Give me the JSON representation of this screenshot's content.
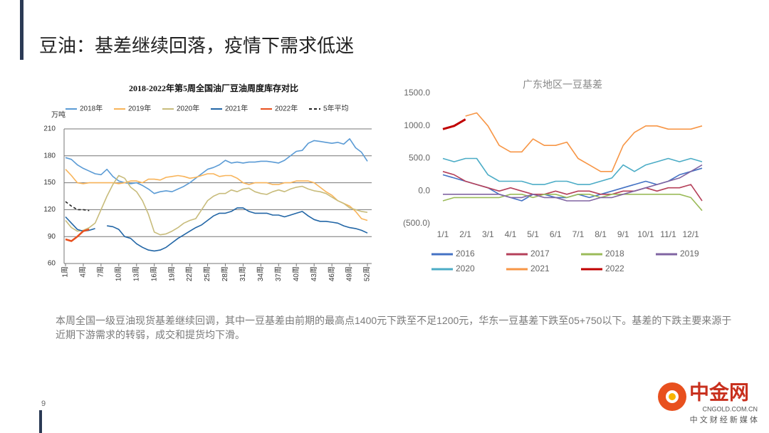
{
  "slide": {
    "title": "豆油：基差继续回落，疫情下需求低迷",
    "paragraph": "本周全国一级豆油现货基差继续回调，其中一豆基差由前期的最高点1400元下跌至不足1200元，华东一豆基差下跌至05+750以下。基差的下跌主要来源于近期下游需求的转弱，成交和提货均下滑。",
    "page_number": "9",
    "logo": {
      "name": "中金网",
      "domain": "CNGOLD.COM.CN",
      "tagline": "中 文 财 经 新 媒 体"
    }
  },
  "chart_data": [
    {
      "type": "line",
      "title": "2018-2022年第5周全国油厂豆油周度库存对比",
      "y_unit": "万吨",
      "legend": "top",
      "grid": true,
      "categories": [
        "1周",
        null,
        null,
        "4周",
        null,
        null,
        "7周",
        null,
        null,
        "10周",
        null,
        null,
        "13周",
        null,
        null,
        "16周",
        null,
        null,
        "19周",
        null,
        null,
        "22周",
        null,
        null,
        "25周",
        null,
        null,
        "28周",
        null,
        null,
        "31周",
        null,
        null,
        "34周",
        null,
        null,
        "37周",
        null,
        null,
        "40周",
        null,
        null,
        "43周",
        null,
        null,
        "46周",
        null,
        null,
        "49周",
        null,
        null,
        "52周"
      ],
      "ylim": [
        60,
        210
      ],
      "yticks": [
        60,
        90,
        120,
        150,
        180,
        210
      ],
      "series": [
        {
          "name": "2018年",
          "color": "#5b9bd5",
          "values": [
            178,
            176,
            170,
            166,
            163,
            160,
            159,
            165,
            157,
            152,
            150,
            149,
            150,
            147,
            143,
            138,
            140,
            141,
            140,
            143,
            146,
            150,
            155,
            160,
            165,
            167,
            170,
            175,
            172,
            173,
            172,
            173,
            173,
            174,
            174,
            173,
            172,
            175,
            180,
            185,
            186,
            194,
            197,
            196,
            195,
            194,
            195,
            193,
            199,
            189,
            184,
            174
          ]
        },
        {
          "name": "2019年",
          "color": "#f8b45a",
          "values": [
            165,
            158,
            150,
            149,
            150,
            150,
            150,
            150,
            150,
            149,
            150,
            152,
            152,
            150,
            154,
            154,
            153,
            156,
            157,
            158,
            157,
            155,
            156,
            158,
            160,
            160,
            157,
            158,
            158,
            155,
            150,
            148,
            150,
            150,
            150,
            148,
            148,
            150,
            150,
            152,
            152,
            152,
            150,
            145,
            140,
            136,
            130,
            127,
            124,
            118,
            110,
            108
          ]
        },
        {
          "name": "2020年",
          "color": "#c8bc7c",
          "values": [
            108,
            100,
            96,
            97,
            100,
            105,
            120,
            135,
            148,
            158,
            155,
            145,
            140,
            130,
            115,
            95,
            92,
            93,
            96,
            100,
            105,
            108,
            110,
            120,
            130,
            135,
            138,
            138,
            142,
            140,
            143,
            144,
            140,
            138,
            137,
            140,
            142,
            140,
            143,
            145,
            146,
            143,
            141,
            140,
            138,
            134,
            130,
            127,
            122,
            120,
            118,
            117
          ]
        },
        {
          "name": "2021年",
          "color": "#2266a6",
          "values": [
            112,
            105,
            98,
            96,
            97,
            99,
            null,
            102,
            101,
            98,
            90,
            88,
            82,
            78,
            75,
            74,
            75,
            78,
            83,
            88,
            92,
            96,
            100,
            103,
            108,
            113,
            116,
            116,
            118,
            122,
            122,
            118,
            116,
            116,
            116,
            114,
            114,
            112,
            114,
            116,
            118,
            113,
            109,
            107,
            107,
            106,
            105,
            102,
            100,
            99,
            97,
            94
          ]
        },
        {
          "name": "2022年",
          "color": "#e8501e",
          "width": 2.5,
          "values": [
            87,
            85,
            90,
            96,
            98,
            null,
            null,
            null,
            null,
            null,
            null,
            null,
            null,
            null,
            null,
            null,
            null,
            null,
            null,
            null,
            null,
            null,
            null,
            null,
            null,
            null,
            null,
            null,
            null,
            null,
            null,
            null,
            null,
            null,
            null,
            null,
            null,
            null,
            null,
            null,
            null,
            null,
            null,
            null,
            null,
            null,
            null,
            null,
            null,
            null,
            null,
            null
          ]
        },
        {
          "name": "5年平均",
          "color": "#222222",
          "dash": true,
          "values": [
            129,
            124,
            120,
            120,
            119,
            null,
            null,
            null,
            null,
            null,
            null,
            null,
            null,
            null,
            null,
            null,
            null,
            null,
            null,
            null,
            null,
            null,
            null,
            null,
            null,
            null,
            null,
            null,
            null,
            null,
            null,
            null,
            null,
            null,
            null,
            null,
            null,
            null,
            null,
            null,
            null,
            null,
            null,
            null,
            null,
            null,
            null,
            null,
            null,
            null,
            null,
            null
          ]
        }
      ]
    },
    {
      "type": "line",
      "title": "广东地区一豆基差",
      "legend": "bottom",
      "grid": false,
      "categories": [
        "1/1",
        null,
        "2/1",
        null,
        "3/1",
        null,
        "4/1",
        null,
        "5/1",
        null,
        "6/1",
        null,
        "7/1",
        null,
        "8/1",
        null,
        "9/1",
        null,
        "10/1",
        null,
        "11/1",
        null,
        "12/1",
        null
      ],
      "ylim": [
        -500,
        1500
      ],
      "yticks": [
        {
          "value": -500,
          "label": "(500.0)"
        },
        {
          "value": 0,
          "label": "0.0"
        },
        {
          "value": 500,
          "label": "500.0"
        },
        {
          "value": 1000,
          "label": "1000.0"
        },
        {
          "value": 1500,
          "label": "1500.0"
        }
      ],
      "series": [
        {
          "name": "2016",
          "color": "#4472c4",
          "values": [
            250,
            200,
            150,
            100,
            50,
            -50,
            -100,
            -150,
            -50,
            -50,
            -100,
            -100,
            -50,
            -100,
            -50,
            0,
            50,
            100,
            150,
            100,
            150,
            250,
            300,
            350
          ]
        },
        {
          "name": "2017",
          "color": "#b5405a",
          "values": [
            300,
            250,
            150,
            100,
            50,
            0,
            50,
            0,
            -50,
            -50,
            0,
            -50,
            0,
            0,
            -50,
            -50,
            0,
            0,
            50,
            0,
            50,
            50,
            100,
            -150
          ]
        },
        {
          "name": "2018",
          "color": "#9bbb59",
          "values": [
            -150,
            -100,
            -100,
            -100,
            -100,
            -100,
            -50,
            -50,
            -100,
            -50,
            -50,
            -100,
            -50,
            -50,
            -100,
            -50,
            -50,
            -50,
            -50,
            -50,
            -50,
            -50,
            -100,
            -300
          ]
        },
        {
          "name": "2019",
          "color": "#8064a2",
          "values": [
            -50,
            -50,
            -50,
            -50,
            -50,
            -50,
            -100,
            -100,
            -50,
            -100,
            -100,
            -150,
            -150,
            -150,
            -100,
            -100,
            -50,
            0,
            50,
            100,
            150,
            200,
            300,
            400
          ]
        },
        {
          "name": "2020",
          "color": "#4bacc6",
          "values": [
            500,
            450,
            500,
            500,
            250,
            150,
            150,
            150,
            100,
            100,
            150,
            150,
            100,
            100,
            150,
            200,
            400,
            300,
            400,
            450,
            500,
            450,
            500,
            450
          ]
        },
        {
          "name": "2021",
          "color": "#f79646",
          "values": [
            null,
            null,
            1150,
            1200,
            1000,
            700,
            600,
            600,
            800,
            700,
            700,
            750,
            500,
            400,
            300,
            300,
            700,
            900,
            1000,
            1000,
            950,
            950,
            950,
            1000
          ]
        },
        {
          "name": "2022",
          "color": "#c00000",
          "width": 3,
          "values": [
            950,
            1000,
            1100,
            null,
            null,
            null,
            null,
            null,
            null,
            null,
            null,
            null,
            null,
            null,
            null,
            null,
            null,
            null,
            null,
            null,
            null,
            null,
            null,
            null
          ]
        }
      ]
    }
  ]
}
